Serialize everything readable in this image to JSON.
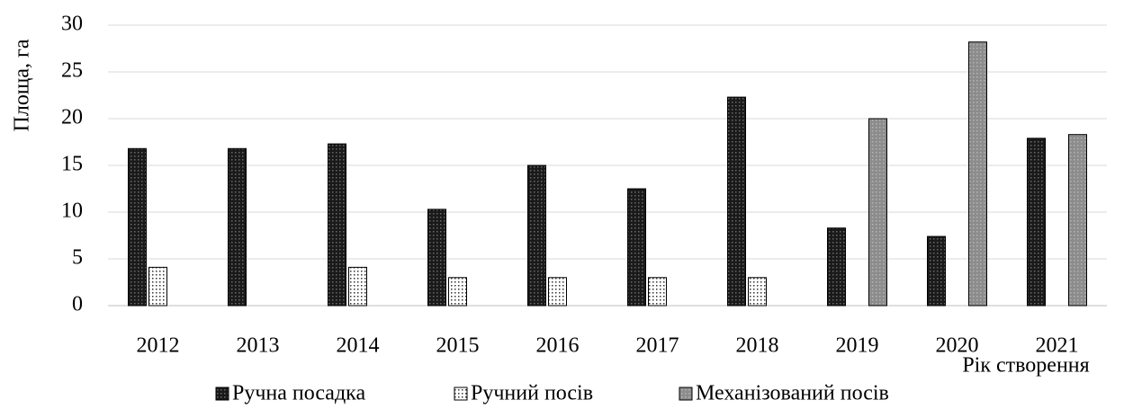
{
  "chart_data": {
    "type": "bar",
    "x_label": "Рік створення",
    "y_label": "Площа, га",
    "categories": [
      "2012",
      "2013",
      "2014",
      "2015",
      "2016",
      "2017",
      "2018",
      "2019",
      "2020",
      "2021"
    ],
    "series": [
      {
        "name": "Ручна посадка",
        "color": "#1a1a1a",
        "values": [
          16.8,
          16.8,
          17.3,
          10.3,
          15.0,
          12.5,
          22.3,
          8.3,
          7.4,
          17.9
        ]
      },
      {
        "name": "Ручний посів",
        "color": "#ffffff",
        "values": [
          4.1,
          0,
          4.1,
          3.0,
          3.0,
          3.0,
          3.0,
          0,
          0,
          0
        ]
      },
      {
        "name": "Механізований посів",
        "color": "#8c8c8c",
        "values": [
          0,
          0,
          0,
          0,
          0,
          0,
          0,
          20.0,
          28.2,
          18.3
        ]
      }
    ],
    "ylim": [
      0,
      30
    ],
    "yticks": [
      0,
      5,
      10,
      15,
      20,
      25,
      30
    ],
    "grid": true,
    "legend": "bottom"
  }
}
